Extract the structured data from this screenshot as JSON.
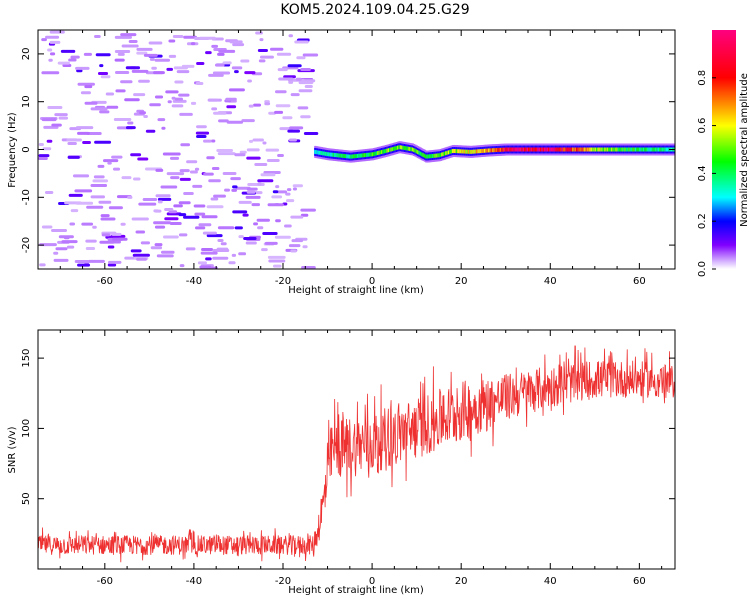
{
  "figure": {
    "title": "KOM5.2024.109.04.25.G29"
  },
  "chart_data": [
    {
      "type": "heatmap",
      "xlabel": "Height of straight line (km)",
      "ylabel": "Frequency (Hz)",
      "xlim": [
        -75,
        68
      ],
      "ylim": [
        -25,
        25
      ],
      "xticks": [
        -60,
        -40,
        -20,
        0,
        20,
        40,
        60
      ],
      "yticks": [
        -20,
        -10,
        0,
        10,
        20
      ],
      "colorbar": {
        "label": "Normalized spectral amplitude",
        "range": [
          0,
          1
        ],
        "ticks": [
          0.0,
          0.2,
          0.4,
          0.6,
          0.8
        ]
      },
      "signal_track": [
        {
          "x": -13,
          "y": -0.5,
          "amp": 0.3
        },
        {
          "x": -10,
          "y": -1.0,
          "amp": 0.35
        },
        {
          "x": -5,
          "y": -1.5,
          "amp": 0.4
        },
        {
          "x": 0,
          "y": -1.0,
          "amp": 0.45
        },
        {
          "x": 3,
          "y": -0.3,
          "amp": 0.5
        },
        {
          "x": 6,
          "y": 0.5,
          "amp": 0.5
        },
        {
          "x": 9,
          "y": 0.0,
          "amp": 0.5
        },
        {
          "x": 12,
          "y": -1.5,
          "amp": 0.4
        },
        {
          "x": 15,
          "y": -1.2,
          "amp": 0.5
        },
        {
          "x": 18,
          "y": -0.3,
          "amp": 0.55
        },
        {
          "x": 22,
          "y": -0.5,
          "amp": 0.6
        },
        {
          "x": 26,
          "y": -0.2,
          "amp": 0.65
        },
        {
          "x": 30,
          "y": 0.0,
          "amp": 0.9
        },
        {
          "x": 40,
          "y": 0.0,
          "amp": 0.95
        },
        {
          "x": 50,
          "y": 0.0,
          "amp": 0.55
        },
        {
          "x": 60,
          "y": 0.0,
          "amp": 0.4
        },
        {
          "x": 68,
          "y": 0.0,
          "amp": 0.35
        }
      ],
      "noise_region": {
        "x": [
          -75,
          -15
        ],
        "amp": 0.12
      }
    },
    {
      "type": "line",
      "xlabel": "Height of straight line (km)",
      "ylabel": "SNR (v/v)",
      "xlim": [
        -75,
        68
      ],
      "ylim": [
        0,
        170
      ],
      "xticks": [
        -60,
        -40,
        -20,
        0,
        20,
        40,
        60
      ],
      "yticks": [
        50,
        100,
        150
      ],
      "series": [
        {
          "color": "#ee3030",
          "trend_x": [
            -75,
            -13,
            -11,
            -9,
            0,
            10,
            20,
            30,
            40,
            50,
            60,
            68
          ],
          "trend_y": [
            17,
            17,
            45,
            85,
            90,
            100,
            112,
            122,
            130,
            135,
            135,
            133
          ],
          "spread_y": [
            7,
            7,
            18,
            22,
            22,
            22,
            22,
            17,
            15,
            14,
            13,
            12
          ]
        }
      ]
    }
  ]
}
